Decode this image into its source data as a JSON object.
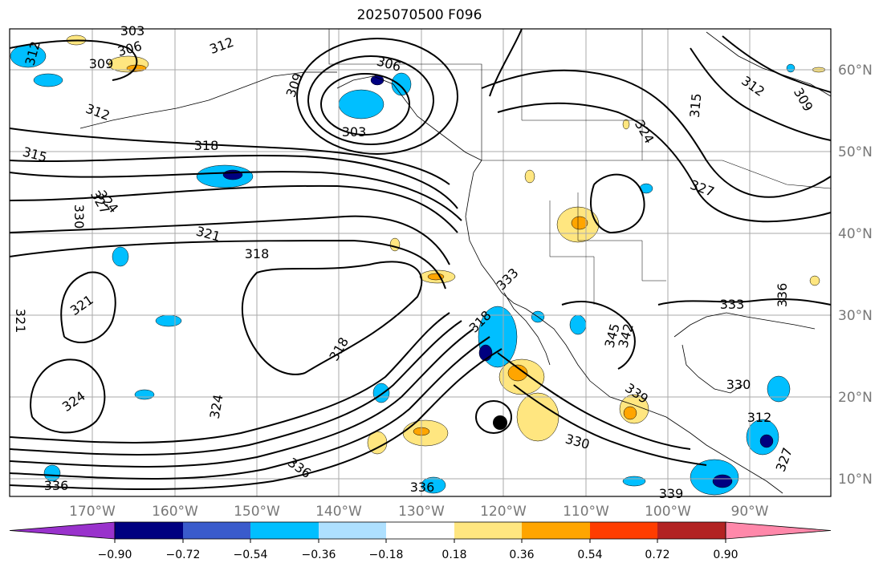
{
  "title": "2025070500 F096",
  "lon_ticks": [
    "170°W",
    "160°W",
    "150°W",
    "140°W",
    "130°W",
    "120°W",
    "110°W",
    "100°W",
    "90°W"
  ],
  "lat_ticks": [
    "60°N",
    "50°N",
    "40°N",
    "30°N",
    "20°N",
    "10°N"
  ],
  "contour_labels": [
    "303",
    "306",
    "309",
    "312",
    "312",
    "306",
    "309",
    "303",
    "312",
    "315",
    "318",
    "321",
    "324",
    "327",
    "330",
    "321",
    "318",
    "321",
    "324",
    "318",
    "324",
    "318",
    "333",
    "330",
    "336",
    "336",
    "339",
    "336",
    "345",
    "342",
    "333",
    "336",
    "330",
    "312",
    "315",
    "312",
    "309",
    "324",
    "327",
    "339",
    "327"
  ],
  "colorbar": {
    "tick_labels": [
      "−0.90",
      "−0.72",
      "−0.54",
      "−0.36",
      "−0.18",
      "0.18",
      "0.36",
      "0.54",
      "0.72",
      "0.90"
    ],
    "colors": [
      "#9932cc",
      "#000080",
      "#3a5bcc",
      "#00bfff",
      "#aee0ff",
      "#ffffff",
      "#ffe680",
      "#ffa500",
      "#ff3d00",
      "#b22222",
      "#ff88aa"
    ]
  }
}
